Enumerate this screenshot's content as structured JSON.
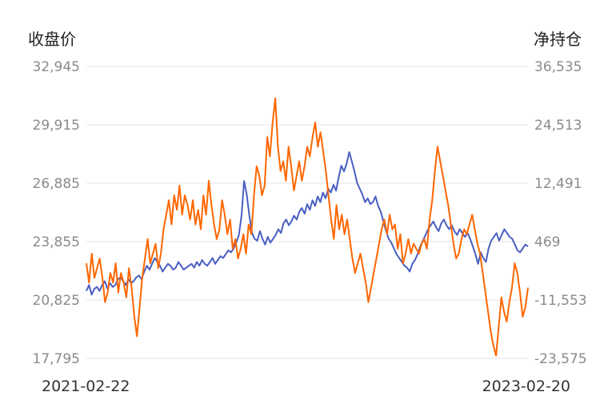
{
  "chart_data": {
    "type": "line",
    "left_axis_title": "收盘价",
    "right_axis_title": "净持仓",
    "left_ticks": [
      "32,945",
      "29,915",
      "26,885",
      "23,855",
      "20,825",
      "17,795"
    ],
    "right_ticks": [
      "36,535",
      "24,513",
      "12,491",
      "469",
      "-11,553",
      "-23,575"
    ],
    "y_left_range": [
      17795,
      32945
    ],
    "y_right_range": [
      -23575,
      36535
    ],
    "x_start_label": "2021-02-22",
    "x_end_label": "2023-02-20",
    "grid": true,
    "series": [
      {
        "axis": "left",
        "color": "#4a5fc1",
        "values": [
          21300,
          21600,
          21100,
          21400,
          21500,
          21300,
          21600,
          21800,
          21400,
          21700,
          21500,
          21600,
          21900,
          22000,
          21800,
          21600,
          21900,
          21700,
          21800,
          22000,
          22100,
          21900,
          22300,
          22600,
          22400,
          22700,
          23000,
          22800,
          22600,
          22300,
          22500,
          22700,
          22600,
          22400,
          22500,
          22800,
          22600,
          22400,
          22500,
          22600,
          22700,
          22500,
          22800,
          22600,
          22900,
          22700,
          22600,
          22800,
          23000,
          22700,
          22900,
          23100,
          23000,
          23200,
          23400,
          23300,
          23500,
          23800,
          24200,
          25200,
          27000,
          26300,
          25200,
          24300,
          24000,
          23900,
          24400,
          24000,
          23700,
          24100,
          23800,
          24000,
          24200,
          24500,
          24300,
          24800,
          25000,
          24700,
          24900,
          25200,
          25000,
          25400,
          25600,
          25300,
          25800,
          25500,
          26000,
          25700,
          26200,
          25900,
          26400,
          26100,
          26600,
          26400,
          26800,
          26500,
          27200,
          27800,
          27500,
          27900,
          28500,
          28000,
          27500,
          26900,
          26600,
          26300,
          25900,
          26100,
          25800,
          25900,
          26200,
          25700,
          25400,
          24900,
          24400,
          24000,
          23800,
          23500,
          23200,
          23000,
          22800,
          22600,
          22500,
          22300,
          22700,
          22900,
          23200,
          23600,
          23900,
          24200,
          24500,
          24700,
          24900,
          24600,
          24400,
          24800,
          25000,
          24700,
          24500,
          24700,
          24400,
          24200,
          24500,
          24300,
          24100,
          24300,
          24000,
          23600,
          23200,
          22700,
          23300,
          23000,
          22800,
          23500,
          23900,
          24100,
          24300,
          23900,
          24200,
          24500,
          24300,
          24100,
          24000,
          23700,
          23400,
          23300,
          23500,
          23700,
          23600
        ]
      },
      {
        "axis": "right",
        "color": "#ff6600",
        "values": [
          -4000,
          -8000,
          -2000,
          -7000,
          -5000,
          -3000,
          -7000,
          -12000,
          -10000,
          -6000,
          -8000,
          -4000,
          -10000,
          -6000,
          -8000,
          -11000,
          -5000,
          -9000,
          -15000,
          -19000,
          -13000,
          -7000,
          -3000,
          1000,
          -4000,
          -2000,
          0,
          -5000,
          -2000,
          3000,
          6000,
          9000,
          4000,
          10000,
          7000,
          12000,
          6000,
          10000,
          8000,
          5000,
          9000,
          4000,
          7000,
          3000,
          10000,
          6000,
          13000,
          8000,
          4000,
          1000,
          3000,
          9000,
          6000,
          2000,
          5000,
          -1000,
          1000,
          -3000,
          -1000,
          2000,
          -2000,
          4000,
          2000,
          10000,
          16000,
          14000,
          10000,
          12000,
          22000,
          18000,
          25000,
          30000,
          20000,
          15000,
          17000,
          13000,
          20000,
          16000,
          11000,
          14000,
          17000,
          13000,
          16000,
          20000,
          18000,
          22000,
          25000,
          20000,
          23000,
          19000,
          15000,
          10000,
          5000,
          1000,
          8000,
          3000,
          6000,
          2000,
          5000,
          1000,
          -3000,
          -6000,
          -4000,
          -2000,
          -5000,
          -8000,
          -12000,
          -9000,
          -6000,
          -3000,
          0,
          3000,
          5000,
          2000,
          6000,
          3000,
          4000,
          -1000,
          2000,
          -4000,
          -2000,
          1000,
          -2000,
          0,
          -1000,
          -2000,
          0,
          1000,
          -1000,
          5000,
          9000,
          15000,
          20000,
          17000,
          14000,
          11000,
          8000,
          4000,
          0,
          -3000,
          -2000,
          1000,
          3000,
          2000,
          4000,
          6000,
          3000,
          0,
          -2000,
          -6000,
          -10000,
          -14000,
          -18000,
          -21000,
          -23000,
          -17000,
          -11000,
          -14000,
          -16000,
          -12000,
          -9000,
          -4000,
          -6000,
          -10000,
          -15000,
          -13000,
          -9000
        ]
      }
    ]
  }
}
